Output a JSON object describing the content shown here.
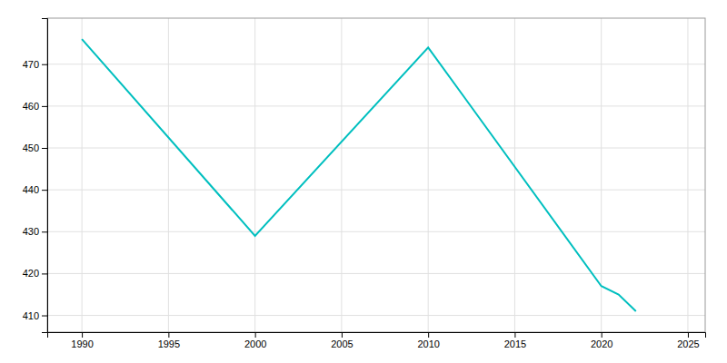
{
  "chart_data": {
    "type": "line",
    "x": [
      1990,
      2000,
      2010,
      2020,
      2021,
      2022
    ],
    "values": [
      476,
      429,
      474,
      417,
      415,
      411
    ],
    "color": "#00BFBF",
    "xlim": [
      1988,
      2026
    ],
    "ylim": [
      406,
      481
    ],
    "xticks": [
      1990,
      1995,
      2000,
      2005,
      2010,
      2015,
      2020,
      2025
    ],
    "yticks": [
      410,
      420,
      430,
      440,
      450,
      460,
      470
    ],
    "grid": true
  }
}
